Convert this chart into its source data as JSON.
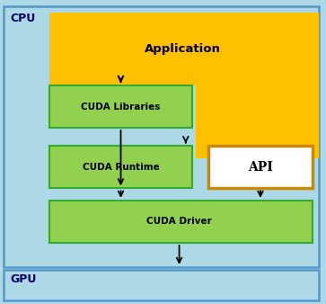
{
  "background_color": "#add8e6",
  "cpu_label": "CPU",
  "gpu_label": "GPU",
  "app_color": "#FFC000",
  "green_color": "#92D050",
  "white_color": "#FFFFFF",
  "api_border_color": "#DAA520",
  "app_text": "Application",
  "lib_text": "CUDA Libraries",
  "runtime_text": "CUDA Runtime",
  "api_text": "API",
  "driver_text": "CUDA Driver",
  "figsize": [
    3.63,
    3.38
  ],
  "dpi": 100
}
